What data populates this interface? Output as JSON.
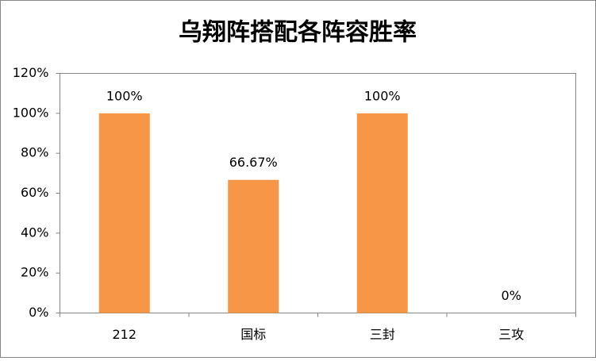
{
  "chart_data": {
    "type": "bar",
    "title": "乌翔阵搭配各阵容胜率",
    "categories": [
      "212",
      "国标",
      "三封",
      "三攻"
    ],
    "values": [
      100,
      66.67,
      100,
      0
    ],
    "value_labels": [
      "100%",
      "66.67%",
      "100%",
      "0%"
    ],
    "color": "#f79646",
    "ylim": [
      0,
      120
    ],
    "yticks": [
      {
        "value": 0,
        "label": "0%"
      },
      {
        "value": 20,
        "label": "20%"
      },
      {
        "value": 40,
        "label": "40%"
      },
      {
        "value": 60,
        "label": "60%"
      },
      {
        "value": 80,
        "label": "80%"
      },
      {
        "value": 100,
        "label": "100%"
      },
      {
        "value": 120,
        "label": "120%"
      }
    ]
  }
}
